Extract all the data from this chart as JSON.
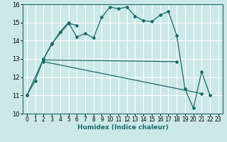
{
  "xlabel": "Humidex (Indice chaleur)",
  "background_color": "#cce8e8",
  "grid_color": "#ffffff",
  "line_color": "#1a6b6b",
  "xlim": [
    -0.5,
    23.5
  ],
  "ylim": [
    10,
    16
  ],
  "xticks": [
    0,
    1,
    2,
    3,
    4,
    5,
    6,
    7,
    8,
    9,
    10,
    11,
    12,
    13,
    14,
    15,
    16,
    17,
    18,
    19,
    20,
    21,
    22,
    23
  ],
  "yticks": [
    10,
    11,
    12,
    13,
    14,
    15,
    16
  ],
  "series1_x": [
    0,
    1,
    2,
    3,
    4,
    5,
    6,
    7,
    8,
    9,
    10,
    11,
    12,
    13,
    14,
    15,
    16,
    17,
    18,
    19,
    20,
    21,
    22
  ],
  "series1_y": [
    11.0,
    11.8,
    13.0,
    13.8,
    14.5,
    15.0,
    14.2,
    14.4,
    14.15,
    15.3,
    15.85,
    15.75,
    15.85,
    15.35,
    15.1,
    15.05,
    15.4,
    15.6,
    14.3,
    11.35,
    10.3,
    12.3,
    11.0
  ],
  "series2_x": [
    0,
    2,
    3,
    5,
    6
  ],
  "series2_y": [
    11.0,
    13.0,
    13.85,
    14.95,
    14.85
  ],
  "series3_x": [
    2,
    18
  ],
  "series3_y": [
    12.95,
    12.85
  ],
  "series4_x": [
    2,
    21
  ],
  "series4_y": [
    12.85,
    11.1
  ]
}
